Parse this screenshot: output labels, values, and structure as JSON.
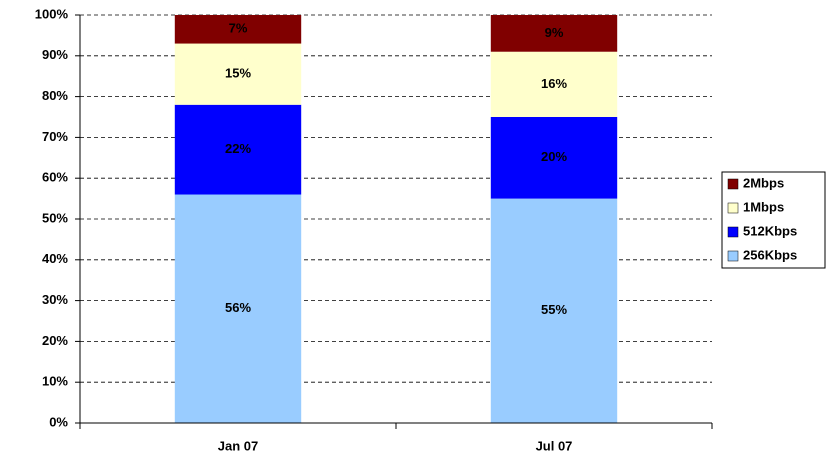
{
  "chart_data": {
    "type": "stacked_bar",
    "categories": [
      "Jan 07",
      "Jul 07"
    ],
    "series": [
      {
        "name": "256Kbps",
        "color": "#99ccff",
        "values": [
          56,
          55
        ],
        "value_labels": [
          "56%",
          "55%"
        ]
      },
      {
        "name": "512Kbps",
        "color": "#0000ff",
        "values": [
          22,
          20
        ],
        "value_labels": [
          "22%",
          "20%"
        ]
      },
      {
        "name": "1Mbps",
        "color": "#ffffcc",
        "values": [
          15,
          16
        ],
        "value_labels": [
          "15%",
          "16%"
        ]
      },
      {
        "name": "2Mbps",
        "color": "#800000",
        "values": [
          7,
          9
        ],
        "value_labels": [
          "7%",
          "9%"
        ]
      }
    ],
    "ylim": [
      0,
      100
    ],
    "yticks": [
      {
        "value": 0,
        "label": "0%"
      },
      {
        "value": 10,
        "label": "10%"
      },
      {
        "value": 20,
        "label": "20%"
      },
      {
        "value": 30,
        "label": "30%"
      },
      {
        "value": 40,
        "label": "40%"
      },
      {
        "value": 50,
        "label": "50%"
      },
      {
        "value": 60,
        "label": "60%"
      },
      {
        "value": 70,
        "label": "70%"
      },
      {
        "value": 80,
        "label": "80%"
      },
      {
        "value": 90,
        "label": "90%"
      },
      {
        "value": 100,
        "label": "100%"
      }
    ],
    "grid": true,
    "legend": "right"
  }
}
